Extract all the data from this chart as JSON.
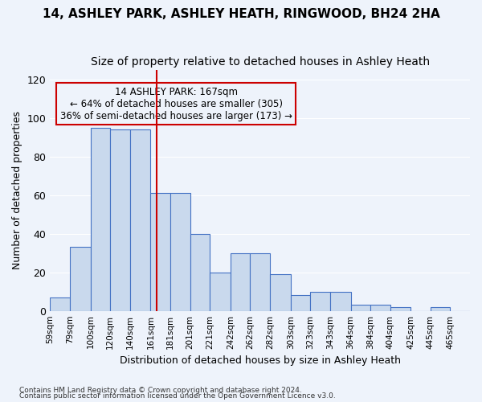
{
  "title": "14, ASHLEY PARK, ASHLEY HEATH, RINGWOOD, BH24 2HA",
  "subtitle": "Size of property relative to detached houses in Ashley Heath",
  "xlabel": "Distribution of detached houses by size in Ashley Heath",
  "ylabel": "Number of detached properties",
  "footnote1": "Contains HM Land Registry data © Crown copyright and database right 2024.",
  "footnote2": "Contains public sector information licensed under the Open Government Licence v3.0.",
  "annotation_line1": "14 ASHLEY PARK: 167sqm",
  "annotation_line2": "← 64% of detached houses are smaller (305)",
  "annotation_line3": "36% of semi-detached houses are larger (173) →",
  "bar_color": "#c9d9ed",
  "bar_edge_color": "#4472c4",
  "ref_line_color": "#cc0000",
  "ref_line_x": 167,
  "bins": [
    59,
    79,
    100,
    120,
    140,
    161,
    181,
    201,
    221,
    242,
    262,
    282,
    303,
    323,
    343,
    364,
    384,
    404,
    425,
    445,
    465,
    485
  ],
  "bar_heights": [
    7,
    33,
    95,
    94,
    94,
    61,
    61,
    40,
    20,
    30,
    30,
    19,
    8,
    10,
    10,
    3,
    3,
    2,
    0,
    2,
    0
  ],
  "ylim": [
    0,
    125
  ],
  "yticks": [
    0,
    20,
    40,
    60,
    80,
    100,
    120
  ],
  "bg_color": "#eef3fb",
  "grid_color": "#ffffff",
  "title_fontsize": 11,
  "subtitle_fontsize": 10,
  "annotation_fontsize": 8.5
}
